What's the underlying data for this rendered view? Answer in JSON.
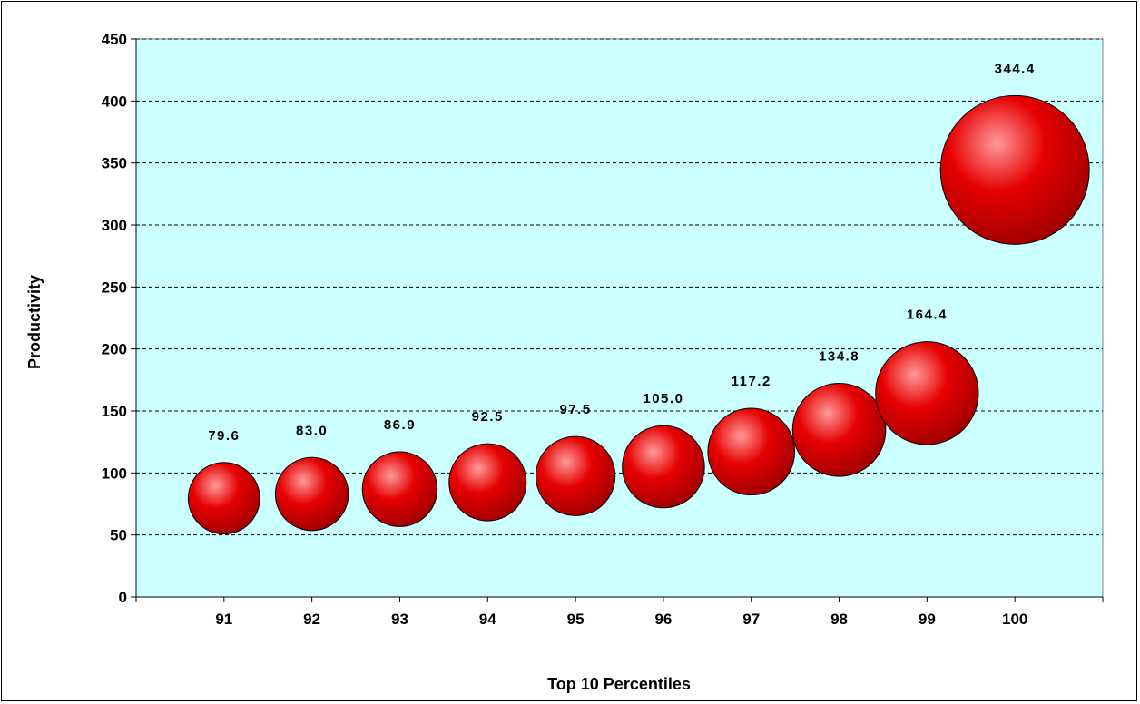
{
  "chart_data": {
    "type": "scatter",
    "variant": "bubble",
    "title": "",
    "xlabel": "Top 10 Percentiles",
    "ylabel": "Productivity",
    "x": [
      91,
      92,
      93,
      94,
      95,
      96,
      97,
      98,
      99,
      100
    ],
    "y": [
      79.6,
      83.0,
      86.9,
      92.5,
      97.5,
      105.0,
      117.2,
      134.8,
      164.4,
      344.4
    ],
    "data_labels": [
      "79.6",
      "83.0",
      "86.9",
      "92.5",
      "97.5",
      "105.0",
      "117.2",
      "134.8",
      "164.4",
      "344.4"
    ],
    "x_ticks": [
      "91",
      "92",
      "93",
      "94",
      "95",
      "96",
      "97",
      "98",
      "99",
      "100"
    ],
    "y_ticks": [
      "0",
      "50",
      "100",
      "150",
      "200",
      "250",
      "300",
      "350",
      "400",
      "450"
    ],
    "xlim": [
      90,
      101
    ],
    "ylim": [
      0,
      450
    ],
    "bubble_size": "proportional to y",
    "grid": "horizontal dashed",
    "legend": "none",
    "colors": {
      "plot_background": "#ccffff",
      "bubble": "#e60000",
      "bubble_highlight": "#ff9a9a",
      "bubble_shadow": "#9e0000",
      "gridline": "#000000"
    }
  }
}
